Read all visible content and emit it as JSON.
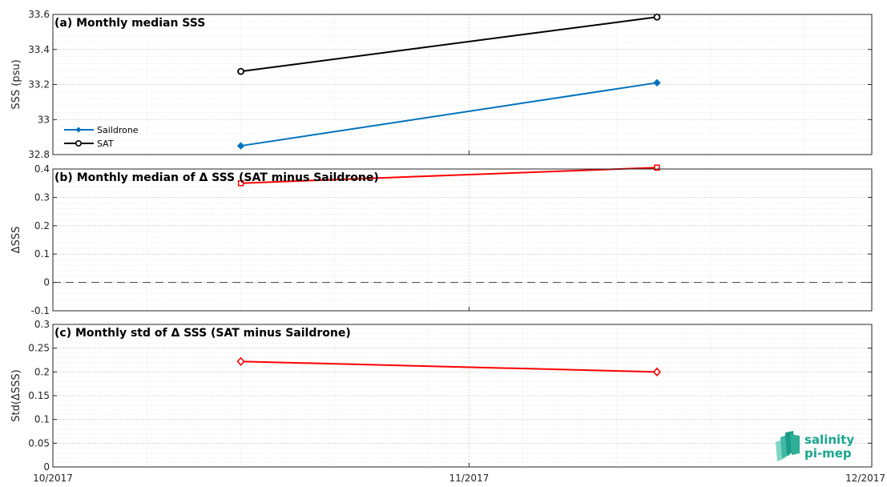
{
  "chart_data": [
    {
      "type": "line",
      "title": "(a) Monthly median SSS",
      "ylabel": "SSS (psu)",
      "ylim": [
        32.8,
        33.6
      ],
      "yticks": [
        32.8,
        33,
        33.2,
        33.4,
        33.6
      ],
      "ytick_labels": [
        "32.8",
        "33",
        "33.2",
        "33.4",
        "33.6"
      ],
      "grid": true,
      "legend": "lower-left",
      "x": [
        "2017-10-15",
        "2017-11-15"
      ],
      "series": [
        {
          "name": "Saildrone",
          "values": [
            32.85,
            33.21
          ],
          "color": "#0072bd",
          "marker": "diamond-filled"
        },
        {
          "name": "SAT",
          "values": [
            33.275,
            33.585
          ],
          "color": "#000000",
          "marker": "circle-open"
        }
      ]
    },
    {
      "type": "line",
      "title": "(b) Monthly median of Δ SSS (SAT minus Saildrone)",
      "ylabel": "ΔSSS",
      "ylim": [
        -0.1,
        0.4
      ],
      "yticks": [
        -0.1,
        0,
        0.1,
        0.2,
        0.3,
        0.4
      ],
      "ytick_labels": [
        "-0.1",
        "0",
        "0.1",
        "0.2",
        "0.3",
        "0.4"
      ],
      "grid": true,
      "reference_line": 0,
      "x": [
        "2017-10-15",
        "2017-11-15"
      ],
      "series": [
        {
          "values": [
            0.35,
            0.405
          ],
          "color": "#ff0000",
          "marker": "square-open"
        }
      ]
    },
    {
      "type": "line",
      "title": "(c) Monthly std of Δ SSS (SAT minus Saildrone)",
      "ylabel": "Std(ΔSSS)",
      "ylim": [
        0,
        0.3
      ],
      "yticks": [
        0,
        0.05,
        0.1,
        0.15,
        0.2,
        0.25,
        0.3
      ],
      "ytick_labels": [
        "0",
        "0.05",
        "0.1",
        "0.15",
        "0.2",
        "0.25",
        "0.3"
      ],
      "grid": true,
      "x": [
        "2017-10-15",
        "2017-11-15"
      ],
      "series": [
        {
          "values": [
            0.222,
            0.2
          ],
          "color": "#ff0000",
          "marker": "diamond-open"
        }
      ]
    }
  ],
  "x_axis": {
    "range": [
      "2017-10-01",
      "2017-12-01"
    ],
    "ticks": [
      "2017-10-01",
      "2017-11-01",
      "2017-12-01"
    ],
    "tick_labels": [
      "10/2017",
      "11/2017",
      "12/2017"
    ]
  },
  "logo": {
    "line1": "salinity",
    "line2": "pi-mep",
    "color": "#1aa58f"
  }
}
